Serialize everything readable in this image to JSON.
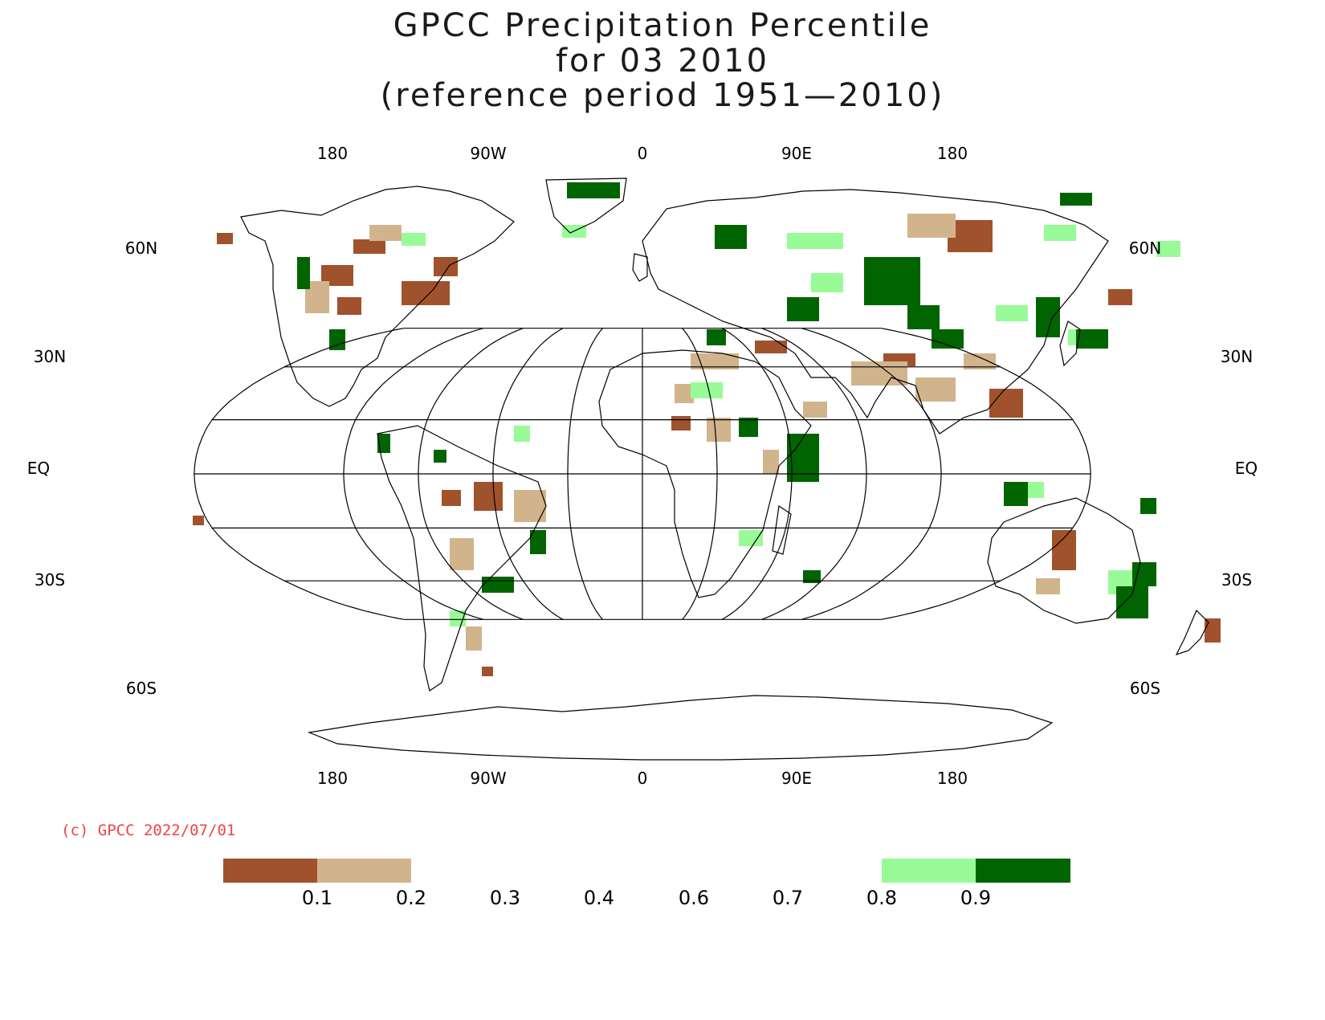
{
  "title": {
    "line1": "GPCC Precipitation Percentile",
    "line2": "for 03 2010",
    "line3": "(reference period 1951—2010)"
  },
  "map": {
    "projection": "Robinson",
    "central_meridian": 0,
    "lon_labels": [
      "180",
      "90W",
      "0",
      "90E",
      "180"
    ],
    "lat_labels": {
      "n60": "60N",
      "n30": "30N",
      "eq": "EQ",
      "s30": "30S",
      "s60": "60S"
    },
    "colors": {
      "very_dry": "#a0522d",
      "dry": "#d2b48c",
      "wet": "#98fb98",
      "very_wet": "#006400",
      "graticule": "#000000",
      "coast": "#000000"
    }
  },
  "copyright": "(c) GPCC 2022/07/01",
  "legend": {
    "ticks": [
      "0.1",
      "0.2",
      "0.3",
      "0.4",
      "0.6",
      "0.7",
      "0.8",
      "0.9"
    ],
    "boxes": [
      {
        "color": "#a0522d",
        "from": "0.0",
        "to": "0.1"
      },
      {
        "color": "#d2b48c",
        "from": "0.1",
        "to": "0.2"
      },
      {
        "color": "#98fb98",
        "from": "0.8",
        "to": "0.9"
      },
      {
        "color": "#006400",
        "from": "0.9",
        "to": "1.0"
      }
    ]
  }
}
